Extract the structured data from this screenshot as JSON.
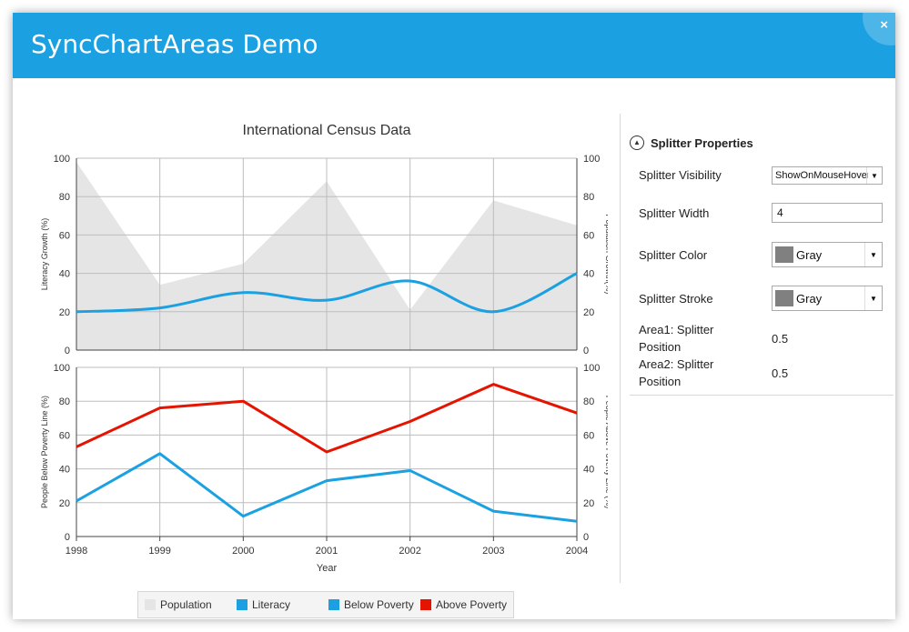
{
  "window": {
    "title": "SyncChartAreas Demo",
    "close_label": "×"
  },
  "chart": {
    "title": "International Census Data",
    "xlabel": "Year",
    "categories": [
      "1998",
      "1999",
      "2000",
      "2001",
      "2002",
      "2003",
      "2004"
    ],
    "area1": {
      "left_axis_label": "Literacy Growth (%)",
      "right_axis_label": "Population Growth(%)",
      "ylim": [
        0,
        100
      ],
      "ticks": [
        "0",
        "20",
        "40",
        "60",
        "80",
        "100"
      ]
    },
    "area2": {
      "left_axis_label": "People Below Poverty Line (%)",
      "right_axis_label": "People Above Poverty Line (%)",
      "ylim": [
        0,
        100
      ],
      "ticks": [
        "0",
        "20",
        "40",
        "60",
        "80",
        "100"
      ]
    },
    "colors": {
      "population": "#e5e5e5",
      "literacy": "#1ba1e2",
      "below": "#1ba1e2",
      "above": "#e51400"
    }
  },
  "chart_data": [
    {
      "type": "area",
      "title": "International Census Data",
      "x": [
        "1998",
        "1999",
        "2000",
        "2001",
        "2002",
        "2003",
        "2004"
      ],
      "ylabel": "Literacy Growth (%)",
      "ylabel_right": "Population Growth(%)",
      "ylim": [
        0,
        100
      ],
      "grid": true,
      "series": [
        {
          "name": "Population",
          "type": "area",
          "axis": "right",
          "values": [
            98,
            34,
            45,
            88,
            21,
            78,
            65
          ]
        },
        {
          "name": "Literacy",
          "type": "spline",
          "axis": "left",
          "values": [
            20,
            22,
            30,
            26,
            36,
            20,
            40
          ]
        }
      ]
    },
    {
      "type": "line",
      "x": [
        "1998",
        "1999",
        "2000",
        "2001",
        "2002",
        "2003",
        "2004"
      ],
      "xlabel": "Year",
      "ylabel": "People Below Poverty Line (%)",
      "ylabel_right": "People Above Poverty Line (%)",
      "ylim": [
        0,
        100
      ],
      "grid": true,
      "series": [
        {
          "name": "Below Poverty",
          "axis": "left",
          "values": [
            21,
            49,
            12,
            33,
            39,
            15,
            9
          ]
        },
        {
          "name": "Above Poverty",
          "axis": "right",
          "values": [
            53,
            76,
            80,
            50,
            68,
            90,
            73
          ]
        }
      ]
    }
  ],
  "legend": {
    "items": [
      {
        "label": "Population",
        "color": "#e5e5e5"
      },
      {
        "label": "Literacy",
        "color": "#1ba1e2"
      },
      {
        "label": "Below Poverty",
        "color": "#1ba1e2"
      },
      {
        "label": "Above Poverty",
        "color": "#e51400"
      }
    ]
  },
  "panel": {
    "title": "Splitter Properties",
    "collapse_icon": "chevron-up-icon",
    "splitter_visibility": {
      "label": "Splitter Visibility",
      "value": "ShowOnMouseHover"
    },
    "splitter_width": {
      "label": "Splitter Width",
      "value": "4"
    },
    "splitter_color": {
      "label": "Splitter Color",
      "value": "Gray",
      "swatch": "#808080"
    },
    "splitter_stroke": {
      "label": "Splitter Stroke",
      "value": "Gray",
      "swatch": "#808080"
    },
    "area1_pos": {
      "label": "Area1: Splitter Position",
      "value": "0.5"
    },
    "area2_pos": {
      "label": "Area2: Splitter Position",
      "value": "0.5"
    }
  }
}
